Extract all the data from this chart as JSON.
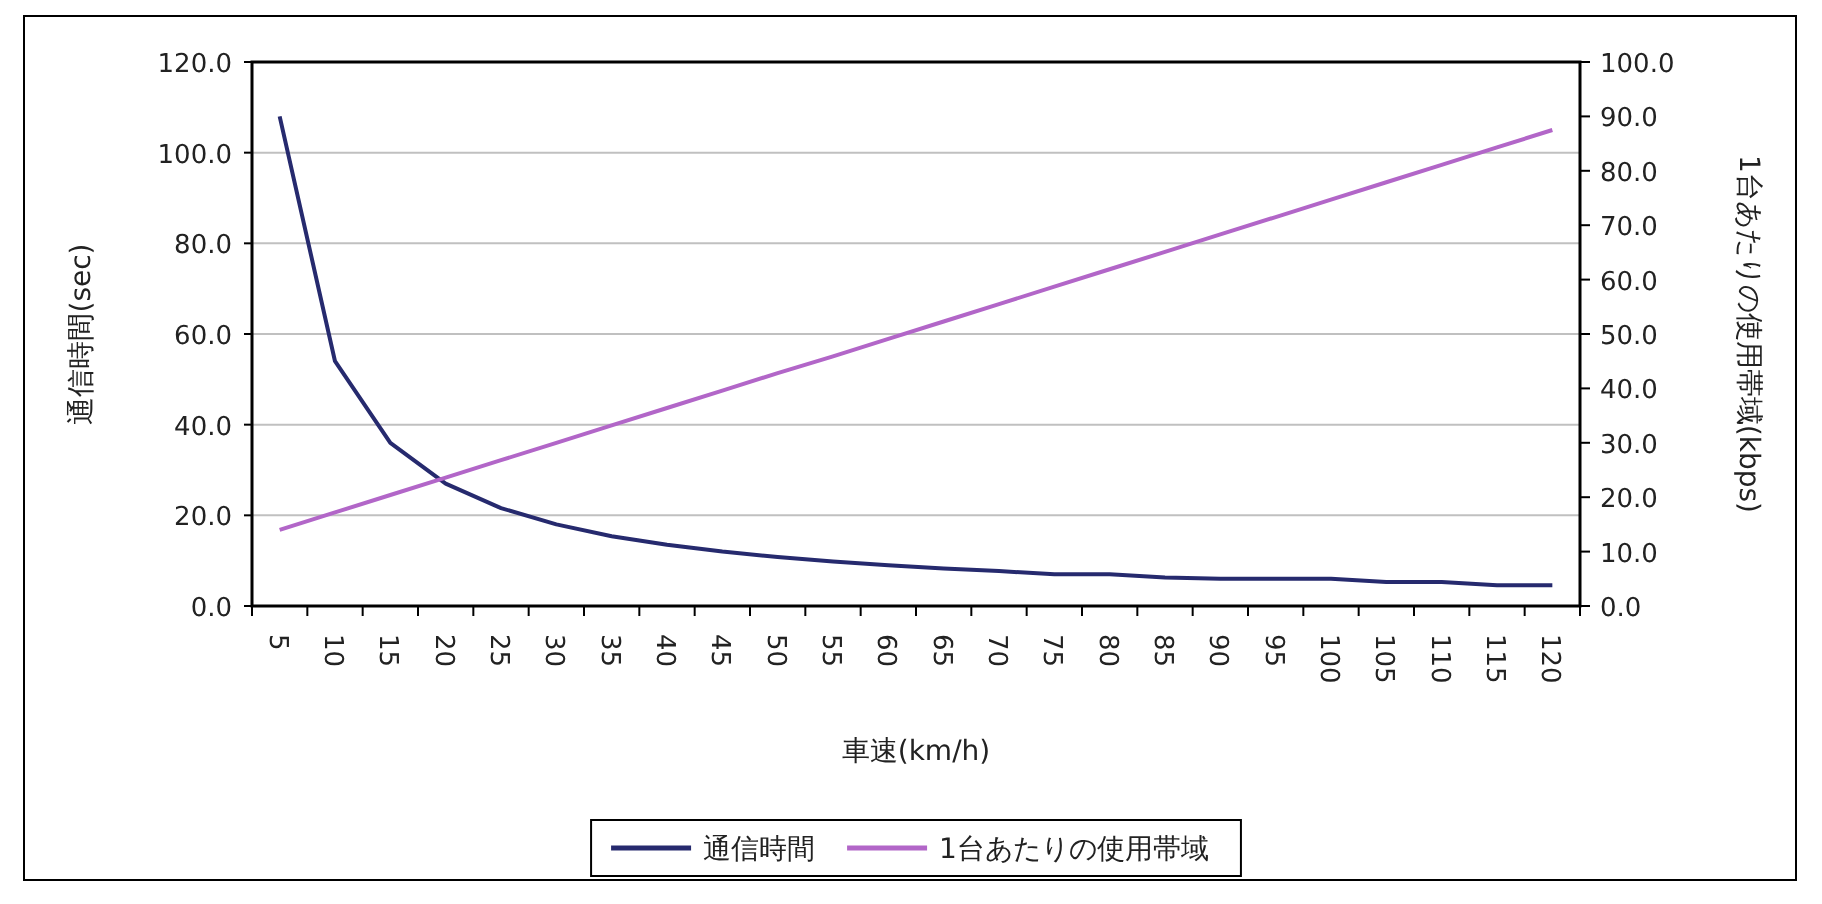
{
  "chart_data": {
    "type": "line",
    "xlabel": "車速(km/h)",
    "ylabel": "通信時間(sec)",
    "y2label": "1台あたりの使用帯域(kbps)",
    "categories": [
      "5",
      "10",
      "15",
      "20",
      "25",
      "30",
      "35",
      "40",
      "45",
      "50",
      "55",
      "60",
      "65",
      "70",
      "75",
      "80",
      "85",
      "90",
      "95",
      "100",
      "105",
      "110",
      "115",
      "120"
    ],
    "series": [
      {
        "name": "通信時間",
        "color": "#262a6e",
        "values": [
          108,
          54,
          36,
          27,
          21.6,
          18,
          15.4,
          13.5,
          12,
          10.8,
          9.8,
          9,
          8.3,
          7.7,
          7,
          7,
          6.3,
          6,
          6,
          6,
          5.3,
          5.3,
          4.6,
          4.6
        ]
      },
      {
        "name": "1台あたりの使用帯域",
        "color": "#b266c8",
        "axis": "y2",
        "values": [
          14,
          17.2,
          20.4,
          23.6,
          26.8,
          30,
          33.2,
          36.4,
          39.6,
          42.8,
          45.9,
          49.1,
          52.3,
          55.5,
          58.7,
          61.9,
          65.1,
          68.3,
          71.5,
          74.7,
          77.9,
          81.1,
          84.3,
          87.5
        ]
      }
    ],
    "ylim": [
      0,
      120
    ],
    "yticks": [
      {
        "value": 0,
        "label": "0.0"
      },
      {
        "value": 20,
        "label": "20.0"
      },
      {
        "value": 40,
        "label": "40.0"
      },
      {
        "value": 60,
        "label": "60.0"
      },
      {
        "value": 80,
        "label": "80.0"
      },
      {
        "value": 100,
        "label": "100.0"
      },
      {
        "value": 120,
        "label": "120.0"
      }
    ],
    "y2lim": [
      0,
      100
    ],
    "y2ticks": [
      {
        "value": 0,
        "label": "0.0"
      },
      {
        "value": 10,
        "label": "10.0"
      },
      {
        "value": 20,
        "label": "20.0"
      },
      {
        "value": 30,
        "label": "30.0"
      },
      {
        "value": 40,
        "label": "40.0"
      },
      {
        "value": 50,
        "label": "50.0"
      },
      {
        "value": 60,
        "label": "60.0"
      },
      {
        "value": 70,
        "label": "70.0"
      },
      {
        "value": 80,
        "label": "80.0"
      },
      {
        "value": 90,
        "label": "90.0"
      },
      {
        "value": 100,
        "label": "100.0"
      }
    ],
    "grid": "y",
    "legend": "bottom",
    "marker": "none",
    "line_style": "solid"
  }
}
